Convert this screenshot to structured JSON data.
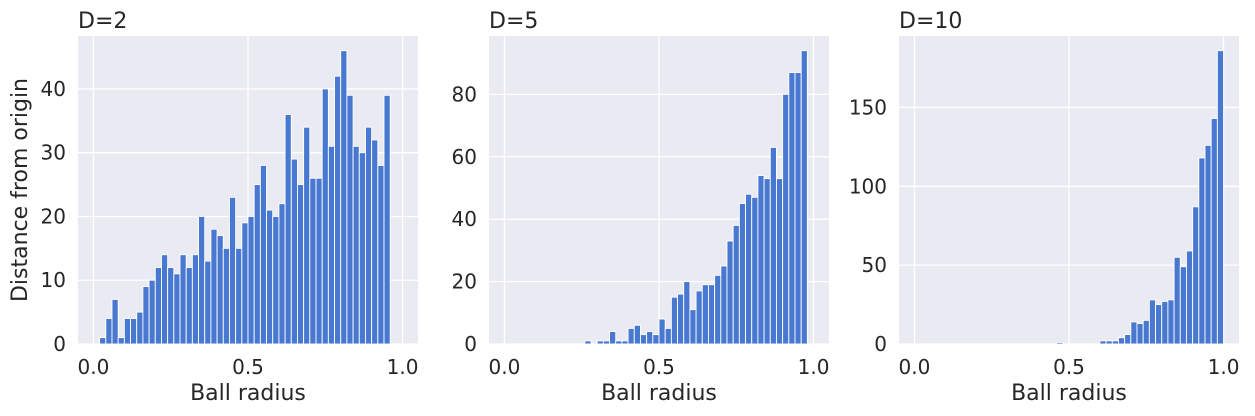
{
  "figure": {
    "background": "#ffffff",
    "panel_bg": "#eaeaf2",
    "grid_color": "#ffffff",
    "bar_color": "#4878d0"
  },
  "chart_data": [
    {
      "type": "bar",
      "title": "D=2",
      "xlabel": "Ball radius",
      "ylabel": "Distance from origin",
      "bin_start": 0.0,
      "bin_width": 0.02,
      "values": [
        1,
        4,
        7,
        1,
        4,
        4,
        5,
        9,
        10,
        12,
        14,
        12,
        11,
        14,
        12,
        14,
        20,
        13,
        18,
        17,
        15,
        23,
        15,
        19,
        20,
        25,
        28,
        21,
        20,
        22,
        36,
        29,
        25,
        34,
        26,
        26,
        40,
        31,
        42,
        46,
        39,
        31,
        30,
        34,
        32,
        28,
        39
      ],
      "first_bin_offset": 1,
      "xlim": [
        -0.05,
        1.05
      ],
      "ylim": [
        0,
        48.3
      ],
      "xticks": [
        0.0,
        0.5,
        1.0
      ],
      "xtick_labels": [
        "0.0",
        "0.5",
        "1.0"
      ],
      "yticks": [
        0,
        10,
        20,
        30,
        40
      ],
      "ytick_labels": [
        "0",
        "10",
        "20",
        "30",
        "40"
      ],
      "grid": true,
      "legend": "none"
    },
    {
      "type": "bar",
      "title": "D=5",
      "xlabel": "Ball radius",
      "ylabel": "",
      "bin_start": 0.0,
      "bin_width": 0.02,
      "values": [
        0,
        0,
        0,
        0,
        0,
        0,
        0,
        0,
        0,
        0,
        0,
        0,
        0,
        1,
        0,
        1,
        1,
        4,
        1,
        1,
        5,
        6,
        3,
        4,
        3,
        8,
        5,
        15,
        16,
        20,
        11,
        17,
        19,
        19,
        22,
        25,
        33,
        38,
        45,
        48,
        47,
        54,
        53,
        63,
        53,
        80,
        87,
        87,
        94
      ],
      "first_bin_offset": 0,
      "xlim": [
        -0.05,
        1.05
      ],
      "ylim": [
        0,
        98.7
      ],
      "xticks": [
        0.0,
        0.5,
        1.0
      ],
      "xtick_labels": [
        "0.0",
        "0.5",
        "1.0"
      ],
      "yticks": [
        0,
        20,
        40,
        60,
        80
      ],
      "ytick_labels": [
        "0",
        "20",
        "40",
        "60",
        "80"
      ],
      "grid": true,
      "legend": "none"
    },
    {
      "type": "bar",
      "title": "D=10",
      "xlabel": "Ball radius",
      "ylabel": "",
      "bin_start": 0.0,
      "bin_width": 0.02,
      "values": [
        0,
        0,
        0,
        0,
        0,
        0,
        0,
        0,
        0,
        0,
        0,
        0,
        0,
        0,
        0,
        0,
        0,
        0,
        0,
        0,
        0,
        0,
        0,
        0,
        0,
        1,
        0,
        0,
        0,
        0,
        0,
        0,
        2,
        2,
        2,
        4,
        6,
        14,
        13,
        15,
        28,
        25,
        27,
        28,
        55,
        49,
        59,
        87,
        118,
        126,
        143,
        186
      ],
      "first_bin_offset": -2,
      "xlim": [
        -0.05,
        1.05
      ],
      "ylim": [
        0,
        195.3
      ],
      "xticks": [
        0.0,
        0.5,
        1.0
      ],
      "xtick_labels": [
        "0.0",
        "0.5",
        "1.0"
      ],
      "yticks": [
        0,
        50,
        100,
        150
      ],
      "ytick_labels": [
        "0",
        "50",
        "100",
        "150"
      ],
      "grid": true,
      "legend": "none"
    }
  ]
}
